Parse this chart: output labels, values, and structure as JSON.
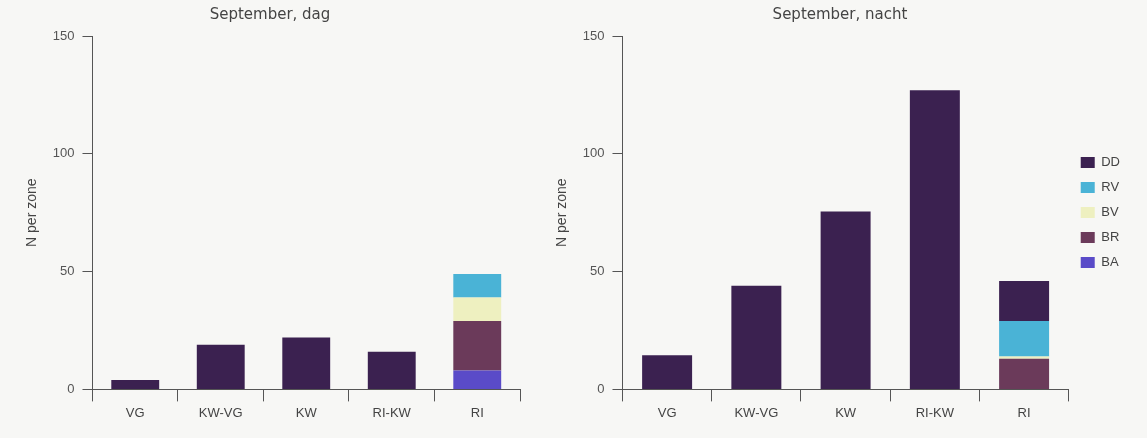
{
  "chart_data": [
    {
      "type": "bar",
      "title": "September, dag",
      "ylabel": "N per zone",
      "stacked": true,
      "categories": [
        "VG",
        "KW-VG",
        "KW",
        "RI-KW",
        "RI"
      ],
      "ylim": [
        0,
        150
      ],
      "yticks": [
        0,
        50,
        100,
        150
      ],
      "grid": false,
      "legend": false,
      "series": [
        {
          "color": "#5a4bc8",
          "values": [
            null,
            null,
            null,
            null,
            8
          ]
        },
        {
          "color": "#6b3a5a",
          "values": [
            null,
            null,
            null,
            null,
            21
          ]
        },
        {
          "color": "#eef0c0",
          "values": [
            null,
            null,
            null,
            null,
            10
          ]
        },
        {
          "color": "#4ab3d6",
          "values": [
            null,
            null,
            null,
            null,
            10
          ]
        },
        {
          "color": "#3b2150",
          "values": [
            4,
            19,
            22,
            16,
            null
          ]
        }
      ]
    },
    {
      "type": "bar",
      "title": "September, nacht",
      "ylabel": "N per zone",
      "stacked": true,
      "categories": [
        "VG",
        "KW-VG",
        "KW",
        "RI-KW",
        "RI"
      ],
      "ylim": [
        0,
        150
      ],
      "yticks": [
        0,
        50,
        100,
        150
      ],
      "grid": false,
      "legend": "right",
      "series": [
        {
          "name": "BA",
          "color": "#5a4bc8",
          "values": [
            null,
            null,
            null,
            null,
            null
          ]
        },
        {
          "name": "BR",
          "color": "#6b3a5a",
          "values": [
            null,
            null,
            null,
            null,
            13
          ]
        },
        {
          "name": "BV",
          "color": "#eef0c0",
          "values": [
            null,
            null,
            null,
            null,
            1
          ]
        },
        {
          "name": "RV",
          "color": "#4ab3d6",
          "values": [
            null,
            null,
            null,
            null,
            15
          ]
        },
        {
          "name": "DD",
          "color": "#3b2150",
          "values": [
            14.5,
            44,
            75.5,
            127,
            17
          ]
        }
      ]
    }
  ]
}
